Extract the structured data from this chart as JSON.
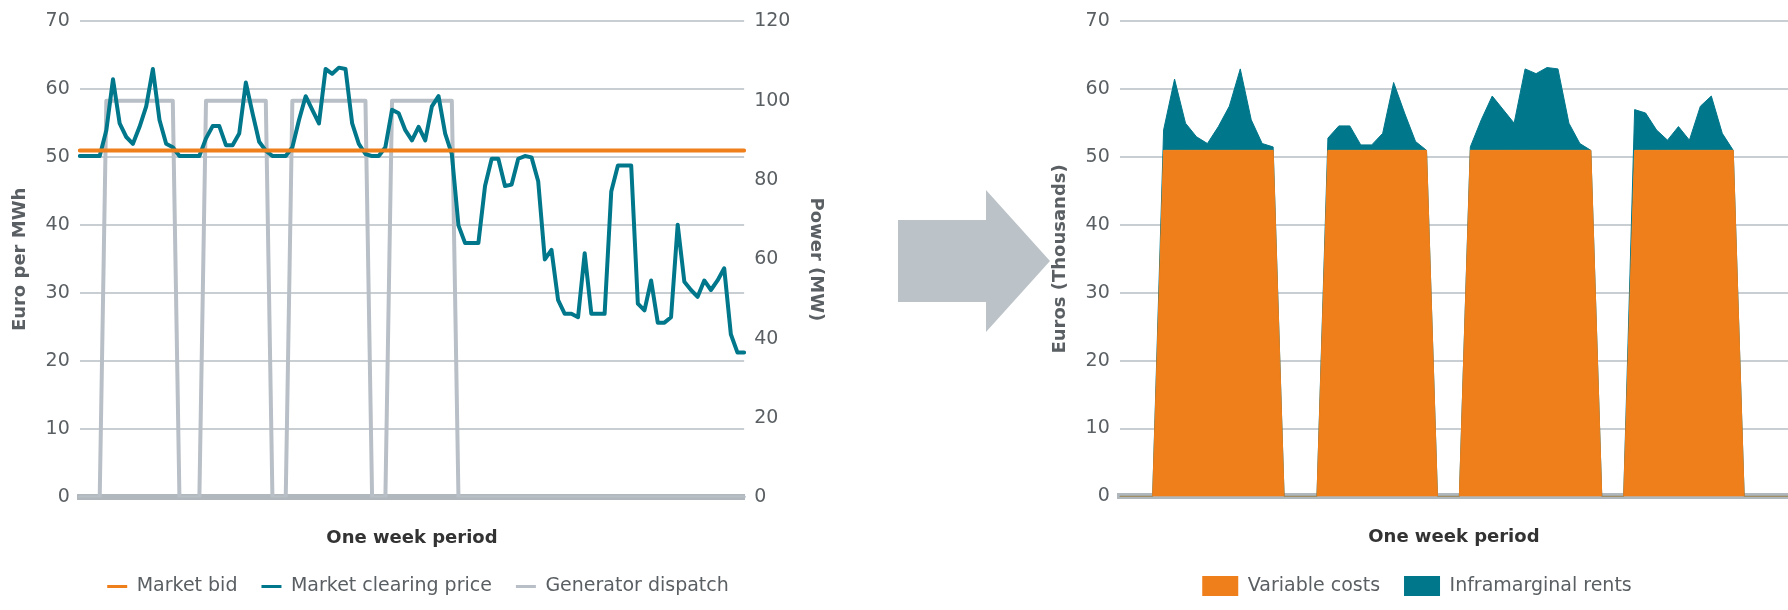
{
  "chart_data": [
    {
      "type": "line",
      "xlabel": "One week period",
      "ylabel": "Euro per MWh",
      "y2label": "Power (MW)",
      "categories": [
        null,
        null,
        null,
        null,
        null,
        null,
        null,
        null,
        null,
        null,
        null,
        null,
        null,
        null,
        null,
        null,
        null,
        null,
        null,
        null,
        null,
        null,
        null,
        null,
        null,
        null,
        null,
        null,
        null,
        null,
        null,
        null,
        null,
        null,
        null,
        null,
        null,
        null,
        null,
        null,
        null,
        null,
        null,
        null,
        null,
        null,
        null,
        null,
        null,
        null,
        null,
        null,
        null,
        null,
        null,
        null,
        null,
        null,
        null,
        null,
        null,
        null,
        null,
        null,
        null,
        null,
        null,
        null,
        null,
        null,
        null,
        null,
        null,
        null,
        null,
        null,
        null,
        null,
        null,
        null,
        null,
        null,
        null,
        null,
        null,
        null,
        null,
        null,
        null,
        null,
        null,
        null,
        null,
        null,
        null,
        null,
        null,
        null,
        null,
        null,
        null
      ],
      "series": [
        {
          "name": "Market bid",
          "color": "#ef7f1a",
          "values": [
            51,
            51,
            51,
            51,
            51,
            51,
            51,
            51,
            51,
            51,
            51,
            51,
            51,
            51,
            51,
            51,
            51,
            51,
            51,
            51,
            51,
            51,
            51,
            51,
            51,
            51,
            51,
            51,
            51,
            51,
            51,
            51,
            51,
            51,
            51,
            51,
            51,
            51,
            51,
            51,
            51,
            51,
            51,
            51,
            51,
            51,
            51,
            51,
            51,
            51,
            51,
            51,
            51,
            51,
            51,
            51,
            51,
            51,
            51,
            51,
            51,
            51,
            51,
            51,
            51,
            51,
            51,
            51,
            51,
            51,
            51,
            51,
            51,
            51,
            51,
            51,
            51,
            51,
            51,
            51,
            51,
            51,
            51,
            51,
            51,
            51,
            51,
            51,
            51,
            51,
            51,
            51,
            51,
            51,
            51,
            51,
            51,
            51,
            51,
            51,
            51
          ]
        },
        {
          "name": "Market clearing price",
          "color": "#00778b",
          "values": [
            50.2,
            50.2,
            50.2,
            50.2,
            54,
            61.5,
            55,
            53,
            52,
            54.5,
            57.5,
            63,
            55.5,
            52,
            51.5,
            50.2,
            50.2,
            50.2,
            50.2,
            52.8,
            54.6,
            54.6,
            51.8,
            51.8,
            53.5,
            61,
            56.5,
            52.3,
            51,
            50.2,
            50.2,
            50.2,
            51.5,
            55.5,
            59,
            57,
            55,
            63,
            62.3,
            63.2,
            63,
            55,
            52,
            50.5,
            50.2,
            50.2,
            51.5,
            57,
            56.5,
            54,
            52.5,
            54.5,
            52.5,
            57.5,
            59,
            53.5,
            50.5,
            40,
            37.4,
            37.4,
            37.4,
            45.8,
            49.8,
            49.8,
            45.8,
            46,
            49.8,
            50.2,
            50,
            46.5,
            35,
            36.4,
            29,
            27,
            27,
            26.5,
            35.9,
            27,
            27,
            27,
            45,
            48.8,
            48.8,
            48.8,
            28.5,
            27.5,
            31.9,
            25.7,
            25.7,
            26.5,
            40.1,
            31.7,
            30.5,
            29.5,
            31.9,
            30.5,
            31.9,
            33.7,
            24,
            21.3,
            21.3
          ]
        },
        {
          "name": "Generator dispatch",
          "color": "#b8bfc6",
          "axis": "y2",
          "values": [
            0,
            0,
            0,
            0,
            100,
            100,
            100,
            100,
            100,
            100,
            100,
            100,
            100,
            100,
            100,
            0,
            0,
            0,
            0,
            100,
            100,
            100,
            100,
            100,
            100,
            100,
            100,
            100,
            100,
            0,
            0,
            0,
            100,
            100,
            100,
            100,
            100,
            100,
            100,
            100,
            100,
            100,
            100,
            100,
            0,
            0,
            0,
            100,
            100,
            100,
            100,
            100,
            100,
            100,
            100,
            100,
            100,
            0,
            0,
            0,
            0,
            0,
            0,
            0,
            0,
            0,
            0,
            0,
            0,
            0,
            0,
            0,
            0,
            0,
            0,
            0,
            0,
            0,
            0,
            0,
            0,
            0,
            0,
            0,
            0,
            0,
            0,
            0,
            0,
            0,
            0,
            0,
            0,
            0,
            0,
            0,
            0,
            0,
            0,
            0,
            0
          ]
        }
      ],
      "ylim": [
        0,
        70
      ],
      "yticks": [
        0,
        10,
        20,
        30,
        40,
        50,
        60,
        70
      ],
      "y2lim": [
        0,
        120
      ],
      "y2ticks": [
        0,
        20,
        40,
        60,
        80,
        100,
        120
      ],
      "grid": "y",
      "legend": "bottom",
      "marker": "none"
    },
    {
      "type": "area",
      "stacked": true,
      "xlabel": "One week period",
      "ylabel": "Euros (Thousands)",
      "categories": [
        null,
        null,
        null,
        null,
        null,
        null,
        null,
        null,
        null,
        null,
        null,
        null,
        null,
        null,
        null,
        null,
        null,
        null,
        null,
        null,
        null,
        null,
        null,
        null,
        null,
        null,
        null,
        null,
        null,
        null,
        null,
        null,
        null,
        null,
        null,
        null,
        null,
        null,
        null,
        null,
        null,
        null,
        null,
        null,
        null,
        null,
        null,
        null,
        null,
        null,
        null,
        null,
        null,
        null,
        null,
        null,
        null,
        null,
        null,
        null,
        null,
        null
      ],
      "series": [
        {
          "name": "Variable costs",
          "color": "#ef7f1a",
          "values": [
            0,
            0,
            0,
            0,
            51,
            51,
            51,
            51,
            51,
            51,
            51,
            51,
            51,
            51,
            51,
            0,
            0,
            0,
            0,
            51,
            51,
            51,
            51,
            51,
            51,
            51,
            51,
            51,
            51,
            0,
            0,
            0,
            51,
            51,
            51,
            51,
            51,
            51,
            51,
            51,
            51,
            51,
            51,
            51,
            0,
            0,
            0,
            51,
            51,
            51,
            51,
            51,
            51,
            51,
            51,
            51,
            51,
            0,
            0,
            0,
            0,
            0
          ]
        },
        {
          "name": "Inframarginal rents",
          "color": "#00778b",
          "values": [
            0,
            0,
            0,
            0,
            3,
            10.5,
            4,
            2,
            1,
            3.5,
            6.5,
            12,
            4.5,
            1,
            0.5,
            0,
            0,
            0,
            0,
            1.8,
            3.6,
            3.6,
            0.8,
            0.8,
            2.5,
            10,
            5.5,
            1.3,
            0,
            0,
            0,
            0,
            0.5,
            4.5,
            8,
            6,
            4,
            12,
            11.3,
            12.2,
            12,
            4,
            1,
            0,
            0,
            0,
            0,
            6,
            5.5,
            3,
            1.5,
            3.5,
            1.5,
            6.5,
            8,
            2.5,
            0,
            0,
            0,
            0,
            0,
            0
          ]
        }
      ],
      "ylim": [
        0,
        70
      ],
      "yticks": [
        0,
        10,
        20,
        30,
        40,
        50,
        60,
        70
      ],
      "grid": "y",
      "legend": "bottom"
    }
  ]
}
